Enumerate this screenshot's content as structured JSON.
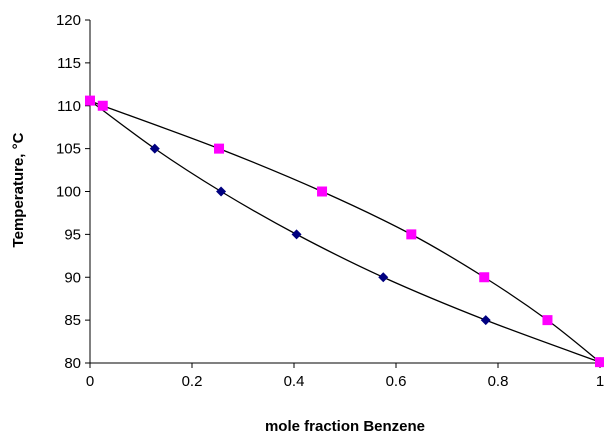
{
  "chart_data": {
    "type": "scatter",
    "title": "",
    "xlabel": "mole fraction Benzene",
    "ylabel": "Temperature,  °C",
    "xlim": [
      0,
      1
    ],
    "ylim": [
      80,
      120
    ],
    "xticks": [
      0,
      0.2,
      0.4,
      0.6,
      0.8,
      1
    ],
    "xtick_labels": [
      "0",
      "0.2",
      "0.4",
      "0.6",
      "0.8",
      "1"
    ],
    "yticks": [
      80,
      85,
      90,
      95,
      100,
      105,
      110,
      115,
      120
    ],
    "ytick_labels": [
      "80",
      "85",
      "90",
      "95",
      "100",
      "105",
      "110",
      "115",
      "120"
    ],
    "grid": false,
    "legend": "none",
    "series": [
      {
        "marker": "diamond",
        "color": "#000080",
        "x": [
          0,
          0.127,
          0.257,
          0.405,
          0.575,
          0.776,
          1
        ],
        "y": [
          110.6,
          105,
          100,
          95,
          90,
          85,
          80.1
        ]
      },
      {
        "marker": "square",
        "color": "#ff00ff",
        "x": [
          0,
          0.025,
          0.253,
          0.455,
          0.63,
          0.773,
          0.897,
          1
        ],
        "y": [
          110.6,
          110,
          105,
          100,
          95,
          90,
          85,
          80.1
        ]
      }
    ],
    "curve_color": "#000000"
  }
}
